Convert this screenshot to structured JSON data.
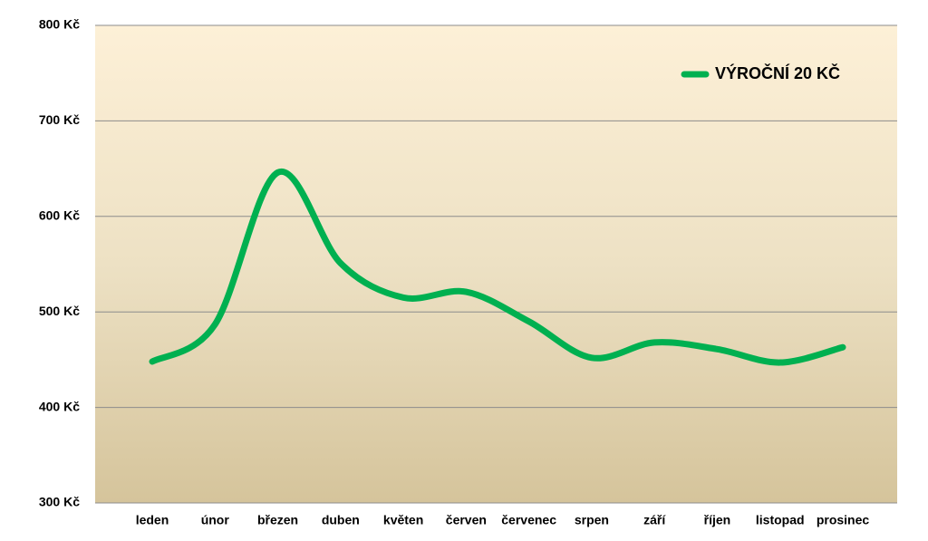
{
  "chart_data": {
    "type": "line",
    "categories": [
      "leden",
      "únor",
      "březen",
      "duben",
      "květen",
      "červen",
      "červenec",
      "srpen",
      "září",
      "říjen",
      "listopad",
      "prosinec"
    ],
    "series": [
      {
        "name": "VÝROČNÍ 20 KČ",
        "color": "#00b050",
        "values": [
          448,
          487,
          646,
          551,
          515,
          521,
          490,
          452,
          468,
          461,
          447,
          463
        ]
      }
    ],
    "ylim": [
      300,
      800
    ],
    "yticks": [
      {
        "value": 300,
        "label": "300 Kč"
      },
      {
        "value": 400,
        "label": "400 Kč"
      },
      {
        "value": 500,
        "label": "500 Kč"
      },
      {
        "value": 600,
        "label": "600 Kč"
      },
      {
        "value": 700,
        "label": "700 Kč"
      },
      {
        "value": 800,
        "label": "800 Kč"
      }
    ],
    "grid": true,
    "smooth": true,
    "legend": "upper right"
  }
}
